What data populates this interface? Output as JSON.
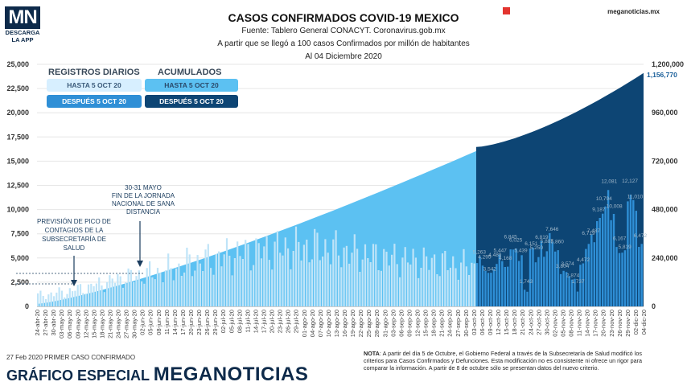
{
  "logo": {
    "mark": "MN",
    "line1": "DESCARGA",
    "line2": "LA APP"
  },
  "header": {
    "title": "CASOS CONFIRMADOS COVID-19 MEXICO",
    "source": "Fuente: Tablero General CONACYT. Coronavirus.gob.mx",
    "criteria": "A partir que se llegó a 100 casos Confirmados por millón de habitantes",
    "date": "Al 04 Diciembre 2020",
    "brand": "meganoticias.mx"
  },
  "legend": {
    "daily_title": "REGISTROS DIARIOS",
    "cumulative_title": "ACUMULADOS",
    "daily_before": "HASTA 5 OCT 20",
    "daily_after": "DESPUÉS 5 OCT 20",
    "cum_before": "HASTA 5 OCT 20",
    "cum_after": "DESPUÉS 5 OCT 20"
  },
  "annotations": {
    "jornada": [
      "30-31 MAYO",
      "FIN DE LA JORNADA",
      "NACIONAL DE SANA",
      "DISTANCIA"
    ],
    "pico": [
      "PREVISIÓN DE PICO DE",
      "CONTAGIOS DE LA",
      "SUBSECRETARÍA DE",
      "SALUD"
    ],
    "last_cumulative": "1,156,770"
  },
  "colors": {
    "daily_before": "#bfe4f8",
    "daily_after": "#2f8fd6",
    "cum_before": "#5cc1f2",
    "cum_after": "#0d4574",
    "axis_text": "#333333"
  },
  "chart_data": {
    "type": "bar",
    "title": "CASOS CONFIRMADOS COVID-19 MEXICO",
    "x_tick_labels": [
      "24-abr-20",
      "27-abr-20",
      "30-abr-20",
      "03-may-20",
      "06-may-20",
      "09-may-20",
      "12-may-20",
      "15-may-20",
      "18-may-20",
      "21-may-20",
      "24-may-20",
      "27-may-20",
      "30-may-20",
      "02-jun-20",
      "05-jun-20",
      "08-jun-20",
      "11-jun-20",
      "14-jun-20",
      "17-jun-20",
      "20-jun-20",
      "23-jun-20",
      "26-jun-20",
      "29-jun-20",
      "02-jul-20",
      "05-jul-20",
      "08-jul-20",
      "11-jul-20",
      "14-jul-20",
      "17-jul-20",
      "20-jul-20",
      "23-jul-20",
      "26-jul-20",
      "29-jul-20",
      "01-ago-20",
      "04-ago-20",
      "07-ago-20",
      "10-ago-20",
      "13-ago-20",
      "16-ago-20",
      "19-ago-20",
      "22-ago-20",
      "25-ago-20",
      "28-ago-20",
      "31-ago-20",
      "03-sep-20",
      "06-sep-20",
      "09-sep-20",
      "12-sep-20",
      "15-sep-20",
      "18-sep-20",
      "21-sep-20",
      "24-sep-20",
      "27-sep-20",
      "30-sep-20",
      "03-oct-20",
      "06-oct-20",
      "09-oct-20",
      "12-oct-20",
      "15-oct-20",
      "18-oct-20",
      "21-oct-20",
      "24-oct-20",
      "27-oct-20",
      "30-oct-20",
      "02-nov-20",
      "05-nov-20",
      "08-nov-20",
      "11-nov-20",
      "14-nov-20",
      "17-nov-20",
      "20-nov-20",
      "23-nov-20",
      "26-nov-20",
      "29-nov-20",
      "02-dic-20",
      "04-dic-20"
    ],
    "y_left": {
      "label": "",
      "ticks": [
        0,
        2500,
        5000,
        7500,
        10000,
        12500,
        15000,
        17500,
        20000,
        22500,
        25000
      ],
      "tick_labels": [
        "0",
        "2,500",
        "5,000",
        "7,500",
        "10,000",
        "12,500",
        "15,000",
        "17,500",
        "20,000",
        "22,500",
        "25,000"
      ],
      "range": [
        0,
        25000
      ]
    },
    "y_right": {
      "label": "",
      "ticks": [
        0,
        240000,
        480000,
        720000,
        960000,
        1200000
      ],
      "tick_labels": [
        "0",
        "240,000",
        "480,000",
        "720,000",
        "960,000",
        "1,200,000"
      ],
      "range": [
        0,
        1200000
      ]
    },
    "series": [
      {
        "name": "REGISTROS DIARIOS HASTA 5 OCT 20",
        "kind": "bar",
        "start": "2020-04-24",
        "weekly_avg": [
          1200,
          1500,
          1900,
          2400,
          2900,
          3200,
          3500,
          3900,
          4500,
          4900,
          5300,
          5600,
          5900,
          6000,
          6100,
          6000,
          5700,
          5400,
          5100,
          4900,
          4700,
          4500,
          4300,
          4100
        ]
      },
      {
        "name": "REGISTROS DIARIOS DESPUÉS 5 OCT 20",
        "kind": "bar",
        "start": "2020-10-06",
        "labeled_values": [
          5263,
          4295,
          3542,
          4489,
          5447,
          4168,
          6845,
          6025,
          5439,
          1743,
          6151,
          5250,
          6819,
          5887,
          7646,
          5860,
          3804,
          3574,
          2874,
          1737,
          4472,
          6719,
          7487,
          9187,
          10794,
          12081,
          10008,
          6167,
          5819,
          12127,
          11010,
          6472
        ]
      },
      {
        "name": "ACUMULADOS HASTA 5 OCT 20",
        "kind": "area",
        "start_value": 12000,
        "end_value": 770000
      },
      {
        "name": "ACUMULADOS DESPUÉS 5 OCT 20",
        "kind": "area",
        "start_value": 790000,
        "end_value": 1156770
      }
    ]
  }
}
